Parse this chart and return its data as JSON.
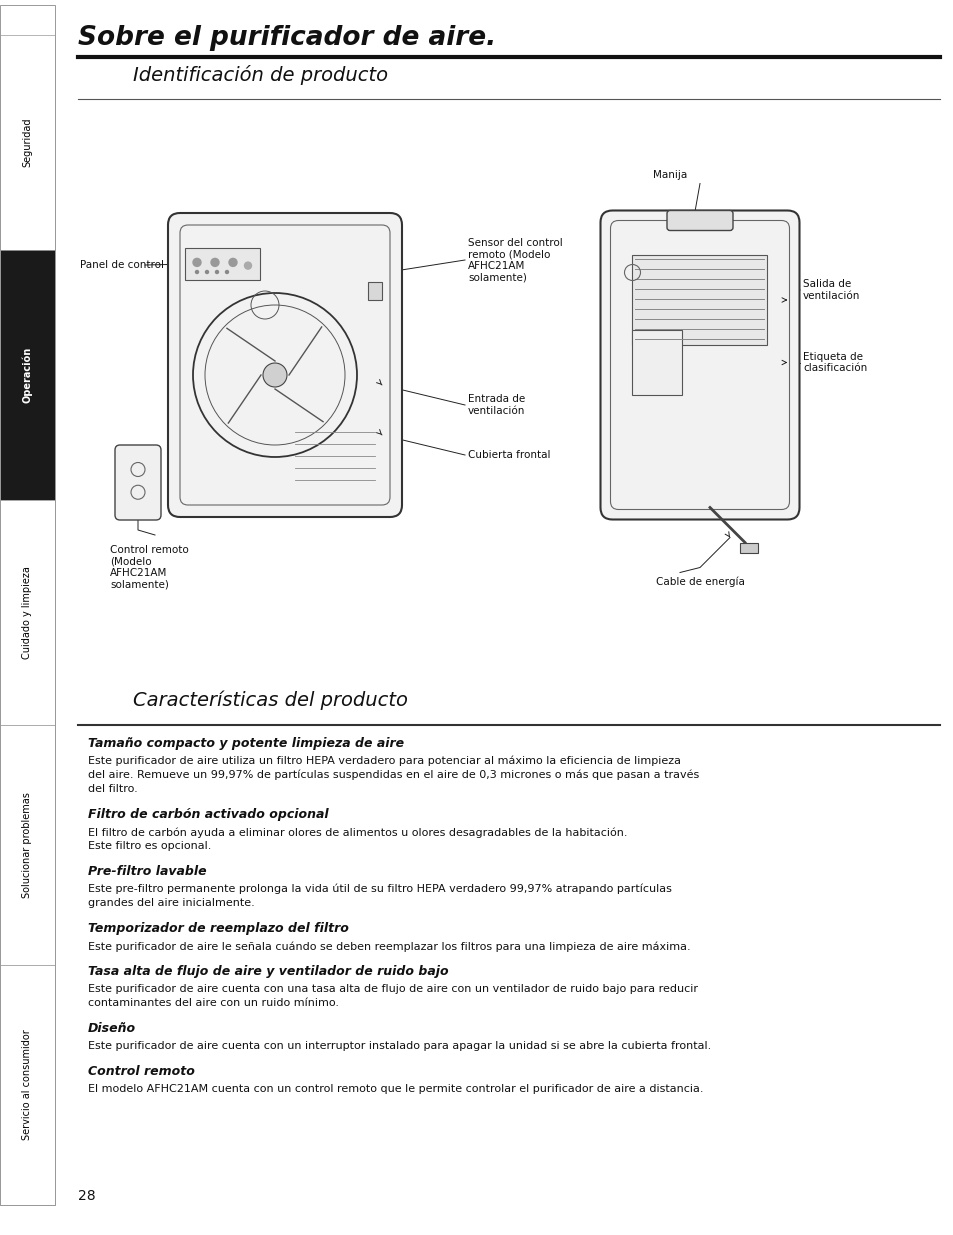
{
  "main_title": "Sobre el purificador de aire.",
  "section1_title": "Identificación de producto",
  "section2_title": "Características del producto",
  "sidebar_labels": [
    "Seguridad",
    "Operación",
    "Cuidado y limpieza",
    "Solucionar problemas",
    "Servicio al consumidor"
  ],
  "sidebar_active_idx": 1,
  "page_number": "28",
  "features": [
    {
      "title": "Tamaño compacto y potente limpieza de aire",
      "body": "Este purificador de aire utiliza un filtro HEPA verdadero para potenciar al máximo la eficiencia de limpieza\ndel aire. Remueve un 99,97% de partículas suspendidas en el aire de 0,3 micrones o más que pasan a través\ndel filtro."
    },
    {
      "title": "Filtro de carbón activado opcional",
      "body": "El filtro de carbón ayuda a eliminar olores de alimentos u olores desagradables de la habitación.\nEste filtro es opcional."
    },
    {
      "title": "Pre-filtro lavable",
      "body": "Este pre-filtro permanente prolonga la vida útil de su filtro HEPA verdadero 99,97% atrapando partículas\ngrandes del aire inicialmente."
    },
    {
      "title": "Temporizador de reemplazo del filtro",
      "body": "Este purificador de aire le señala cuándo se deben reemplazar los filtros para una limpieza de aire máxima."
    },
    {
      "title": "Tasa alta de flujo de aire y ventilador de ruido bajo",
      "body": "Este purificador de aire cuenta con una tasa alta de flujo de aire con un ventilador de ruido bajo para reducir\ncontaminantes del aire con un ruido mínimo."
    },
    {
      "title": "Diseño",
      "body": "Este purificador de aire cuenta con un interruptor instalado para apagar la unidad si se abre la cubierta frontal."
    },
    {
      "title": "Control remoto",
      "body": "El modelo AFHC21AM cuenta con un control remoto que le permite controlar el purificador de aire a distancia."
    }
  ],
  "bg_color": "#ffffff",
  "text_color": "#000000",
  "sidebar_bg_active": "#1a1a1a",
  "sidebar_bg_inactive": "#ffffff",
  "sidebar_border": "#999999"
}
